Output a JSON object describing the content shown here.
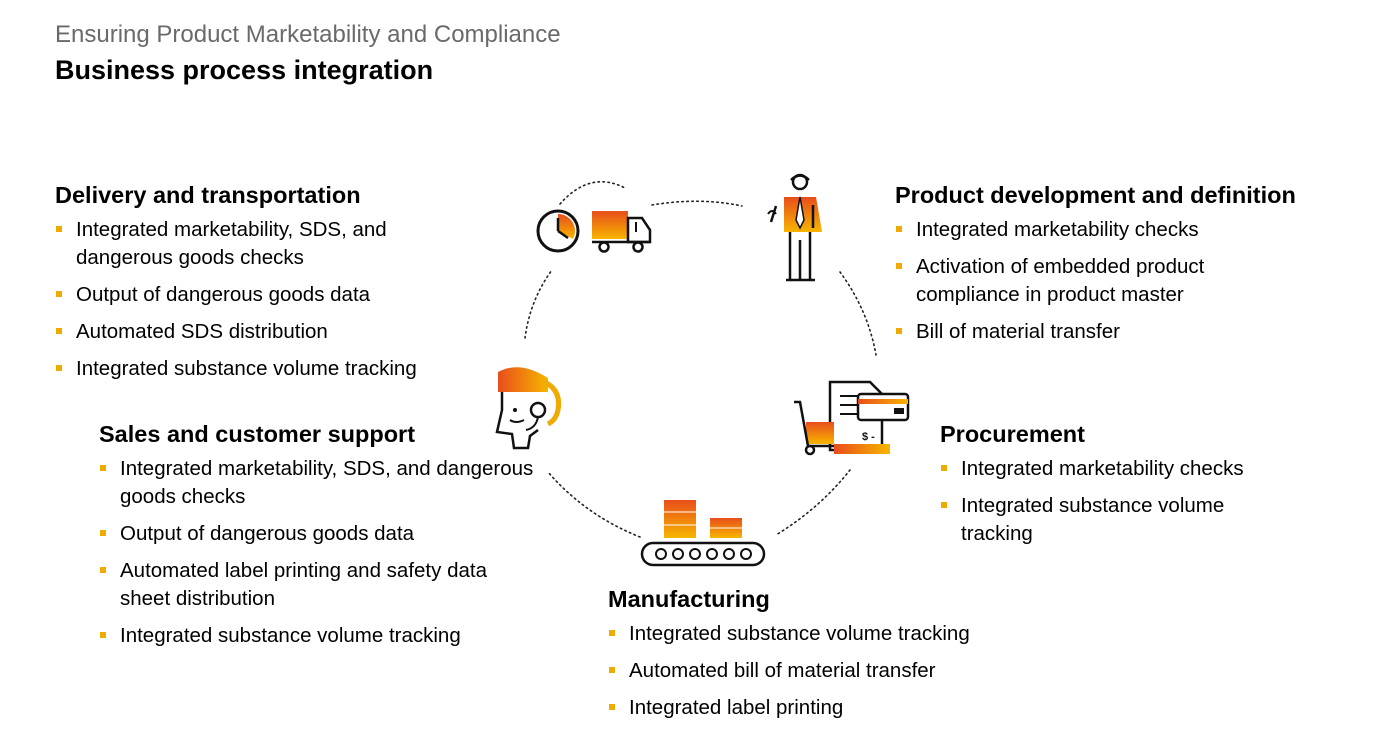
{
  "header": {
    "supertitle": "Ensuring Product Marketability and Compliance",
    "title": "Business process integration"
  },
  "sections": {
    "delivery": {
      "title": "Delivery and transportation",
      "items": [
        "Integrated marketability, SDS, and dangerous goods checks",
        "Output of dangerous goods data",
        "Automated SDS distribution",
        "Integrated substance volume tracking"
      ]
    },
    "product": {
      "title": "Product development and definition",
      "items": [
        "Integrated marketability checks",
        "Activation of embedded product compliance in product master",
        "Bill of material transfer"
      ]
    },
    "sales": {
      "title": "Sales and customer support",
      "items": [
        "Integrated marketability, SDS, and dangerous goods checks",
        "Output of dangerous goods data",
        "Automated label printing and safety data sheet distribution",
        "Integrated substance volume tracking"
      ]
    },
    "procurement": {
      "title": "Procurement",
      "items": [
        "Integrated marketability checks",
        "Integrated substance volume tracking"
      ]
    },
    "manufacturing": {
      "title": "Manufacturing",
      "items": [
        "Integrated substance volume tracking",
        "Automated bill of material transfer",
        "Integrated label printing"
      ]
    }
  },
  "icons": {
    "delivery": "clock-truck-icon",
    "product": "engineer-icon",
    "sales": "headset-agent-icon",
    "procurement": "cart-invoice-icon",
    "manufacturing": "conveyor-belt-icon"
  },
  "colors": {
    "accent_yellow": "#f0ab00",
    "accent_orange": "#e8710a",
    "accent_red": "#d9411e",
    "text": "#000000",
    "subtitle": "#6a6a6a",
    "bullet": "#f0ab00"
  }
}
